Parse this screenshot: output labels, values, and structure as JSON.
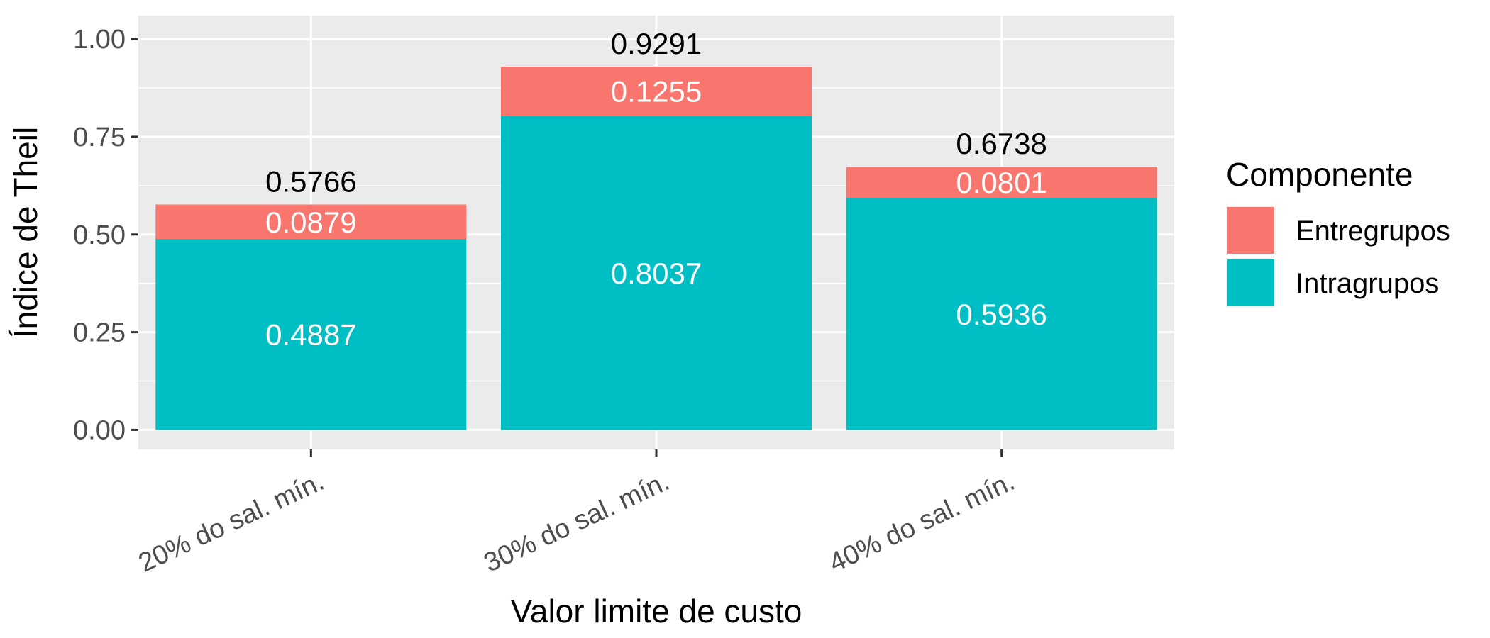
{
  "chart_data": {
    "type": "bar",
    "stacked": true,
    "title": "",
    "xlabel": "Valor limite de custo",
    "ylabel": "Índice de Theil",
    "categories": [
      "20% do sal. mín.",
      "30% do sal. mín.",
      "40% do sal. mín."
    ],
    "series": [
      {
        "name": "Intragrupos",
        "color": "#00BFC4",
        "values": [
          0.4887,
          0.8037,
          0.5936
        ],
        "labels": [
          "0.4887",
          "0.8037",
          "0.5936"
        ]
      },
      {
        "name": "Entregrupos",
        "color": "#F8766D",
        "values": [
          0.0879,
          0.1255,
          0.0801
        ],
        "labels": [
          "0.0879",
          "0.1255",
          "0.0801"
        ]
      }
    ],
    "totals": [
      0.5766,
      0.9291,
      0.6738
    ],
    "total_labels": [
      "0.5766",
      "0.9291",
      "0.6738"
    ],
    "ylim": [
      -0.05,
      1.06
    ],
    "y_ticks": [
      0,
      0.25,
      0.5,
      0.75,
      1.0
    ],
    "y_tick_labels": [
      "0.00",
      "0.25",
      "0.50",
      "0.75",
      "1.00"
    ],
    "grid": true,
    "legend": {
      "title": "Componente",
      "position": "right",
      "entries": [
        {
          "name": "Entregrupos",
          "color": "#F8766D"
        },
        {
          "name": "Intragrupos",
          "color": "#00BFC4"
        }
      ]
    }
  }
}
